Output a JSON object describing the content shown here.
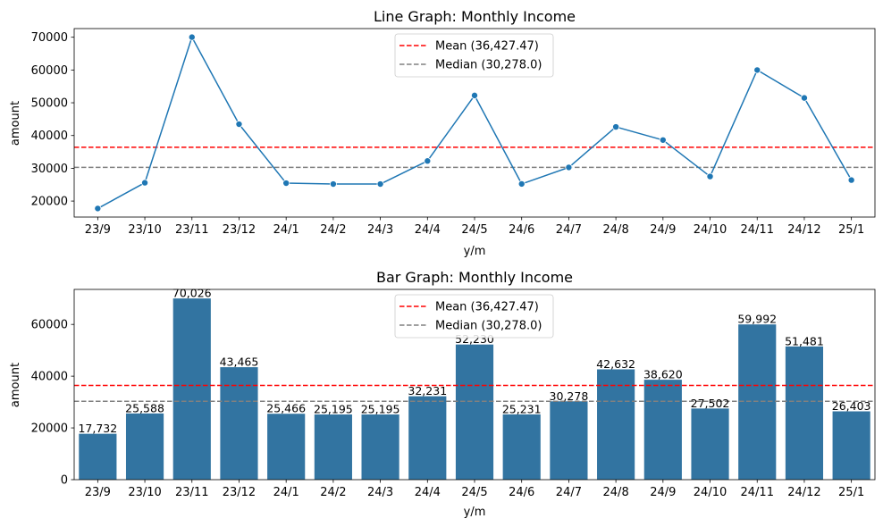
{
  "chart_data": [
    {
      "type": "line",
      "title": "Line Graph: Monthly Income",
      "xlabel": "y/m",
      "ylabel": "amount",
      "categories": [
        "23/9",
        "23/10",
        "23/11",
        "23/12",
        "24/1",
        "24/2",
        "24/3",
        "24/4",
        "24/5",
        "24/6",
        "24/7",
        "24/8",
        "24/9",
        "24/10",
        "24/11",
        "24/12",
        "25/1"
      ],
      "values": [
        17732,
        25588,
        70026,
        43465,
        25466,
        25195,
        25195,
        32231,
        52230,
        25231,
        30278,
        42632,
        38620,
        27502,
        59992,
        51481,
        26403
      ],
      "yticks": [
        20000,
        30000,
        40000,
        50000,
        60000,
        70000
      ],
      "ytick_labels": [
        "20000",
        "30000",
        "40000",
        "50000",
        "60000",
        "70000"
      ],
      "ylim": [
        15118,
        72640
      ],
      "marker": "circle",
      "color": "#1f77b4",
      "reference_lines": [
        {
          "label": "Mean (36,427.47)",
          "value": 36427.47,
          "color": "#ff0000",
          "style": "dashed"
        },
        {
          "label": "Median (30,278.0)",
          "value": 30278.0,
          "color": "#808080",
          "style": "dashed"
        }
      ],
      "legend_position": "upper center",
      "grid": false
    },
    {
      "type": "bar",
      "title": "Bar Graph: Monthly Income",
      "xlabel": "y/m",
      "ylabel": "amount",
      "categories": [
        "23/9",
        "23/10",
        "23/11",
        "23/12",
        "24/1",
        "24/2",
        "24/3",
        "24/4",
        "24/5",
        "24/6",
        "24/7",
        "24/8",
        "24/9",
        "24/10",
        "24/11",
        "24/12",
        "25/1"
      ],
      "values": [
        17732,
        25588,
        70026,
        43465,
        25466,
        25195,
        25195,
        32231,
        52230,
        25231,
        30278,
        42632,
        38620,
        27502,
        59992,
        51481,
        26403
      ],
      "value_labels": [
        "17,732",
        "25,588",
        "70,026",
        "43,465",
        "25,466",
        "25,195",
        "25,195",
        "32,231",
        "52,230",
        "25,231",
        "30,278",
        "42,632",
        "38,620",
        "27,502",
        "59,992",
        "51,481",
        "26,403"
      ],
      "yticks": [
        0,
        20000,
        40000,
        60000
      ],
      "ytick_labels": [
        "0",
        "20000",
        "40000",
        "60000"
      ],
      "ylim": [
        0,
        73527
      ],
      "color": "#3274a1",
      "reference_lines": [
        {
          "label": "Mean (36,427.47)",
          "value": 36427.47,
          "color": "#ff0000",
          "style": "dashed"
        },
        {
          "label": "Median (30,278.0)",
          "value": 30278.0,
          "color": "#808080",
          "style": "dashed"
        }
      ],
      "legend_position": "upper center",
      "grid": false
    }
  ]
}
